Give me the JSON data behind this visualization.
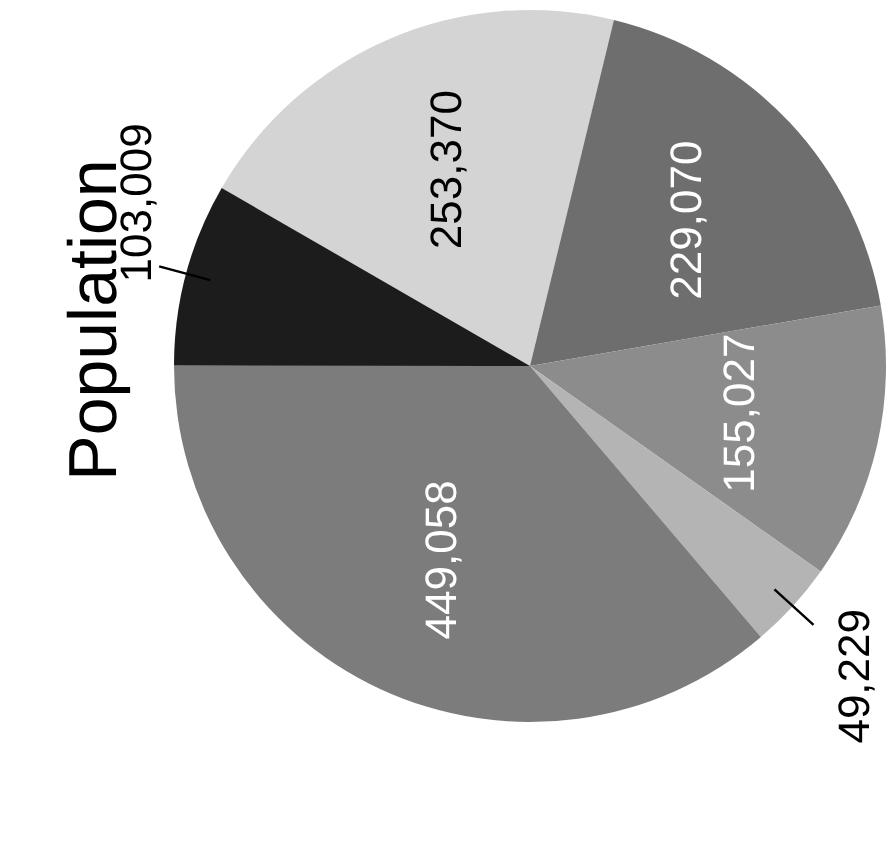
{
  "chart_data": {
    "type": "pie",
    "title": "Population",
    "categories": [
      null,
      null,
      null,
      null,
      null,
      null
    ],
    "values": [
      253370,
      229070,
      155027,
      49229,
      449058,
      103009
    ],
    "value_labels": [
      "253,370",
      "229,070",
      "155,027",
      "49,229",
      "449,058",
      "103,009"
    ],
    "colors": [
      "#d4d4d4",
      "#6e6e6e",
      "#8c8c8c",
      "#b4b4b4",
      "#7c7c7c",
      "#1c1c1c"
    ]
  }
}
